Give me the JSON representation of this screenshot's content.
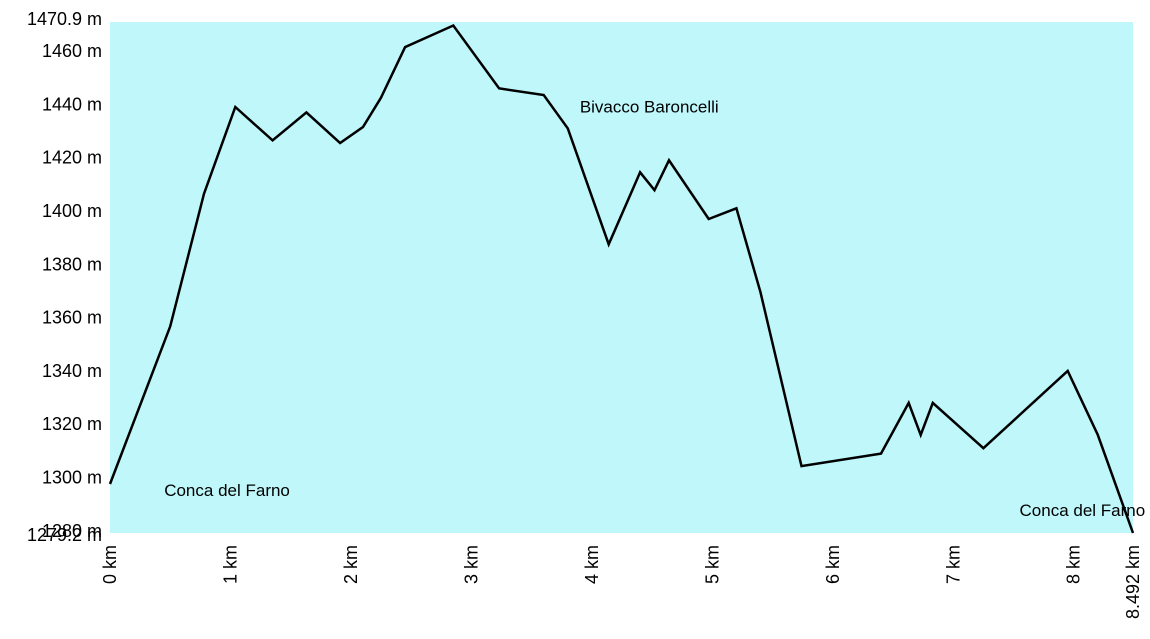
{
  "chart_data": {
    "type": "area",
    "title": "",
    "xlabel": "",
    "ylabel": "",
    "xlim": [
      0,
      8.492
    ],
    "ylim": [
      1279.2,
      1470.9
    ],
    "grid": false,
    "legend": "none",
    "colors": {
      "plot_background": "#bff7fa",
      "line": "#000000"
    },
    "y_ticks": [
      {
        "value": 1470.9,
        "label": "1470.9 m"
      },
      {
        "value": 1460,
        "label": "1460 m"
      },
      {
        "value": 1440,
        "label": "1440 m"
      },
      {
        "value": 1420,
        "label": "1420 m"
      },
      {
        "value": 1400,
        "label": "1400 m"
      },
      {
        "value": 1380,
        "label": "1380 m"
      },
      {
        "value": 1360,
        "label": "1360 m"
      },
      {
        "value": 1340,
        "label": "1340 m"
      },
      {
        "value": 1320,
        "label": "1320 m"
      },
      {
        "value": 1300,
        "label": "1300 m"
      },
      {
        "value": 1280,
        "label": "1280 m"
      },
      {
        "value": 1279.2,
        "label": "1279.2 m"
      }
    ],
    "x_ticks": [
      {
        "value": 0,
        "label": "0 km"
      },
      {
        "value": 1,
        "label": "1 km"
      },
      {
        "value": 2,
        "label": "2 km"
      },
      {
        "value": 3,
        "label": "3 km"
      },
      {
        "value": 4,
        "label": "4 km"
      },
      {
        "value": 5,
        "label": "5 km"
      },
      {
        "value": 6,
        "label": "6 km"
      },
      {
        "value": 7,
        "label": "7 km"
      },
      {
        "value": 8,
        "label": "8 km"
      },
      {
        "value": 8.492,
        "label": "8.492 km"
      }
    ],
    "series": [
      {
        "x": [
          0,
          0.5,
          0.78,
          1.04,
          1.35,
          1.63,
          1.91,
          2.1,
          2.25,
          2.45,
          2.85,
          3.23,
          3.6,
          3.8,
          4.14,
          4.4,
          4.52,
          4.64,
          4.97,
          5.2,
          5.4,
          5.74,
          6.4,
          6.63,
          6.73,
          6.83,
          7.25,
          7.95,
          8.2,
          8.492
        ],
        "y": [
          1297.6,
          1356.7,
          1406.5,
          1439.0,
          1426.5,
          1437.0,
          1425.5,
          1431.5,
          1442.5,
          1461.5,
          1469.6,
          1446.0,
          1443.5,
          1431.0,
          1387.5,
          1414.5,
          1407.8,
          1419.0,
          1397.0,
          1401.0,
          1369.5,
          1304.3,
          1309.0,
          1328.0,
          1316.0,
          1328.0,
          1311.0,
          1340.0,
          1316.0,
          1279.2
        ]
      }
    ],
    "annotations": [
      {
        "text": "Conca del Farno",
        "x": 0.45,
        "y": 1293
      },
      {
        "text": "Bivacco Baroncelli",
        "x": 3.9,
        "y": 1437
      },
      {
        "text": "Conca del Farno",
        "x": 7.55,
        "y": 1285.5
      }
    ]
  }
}
